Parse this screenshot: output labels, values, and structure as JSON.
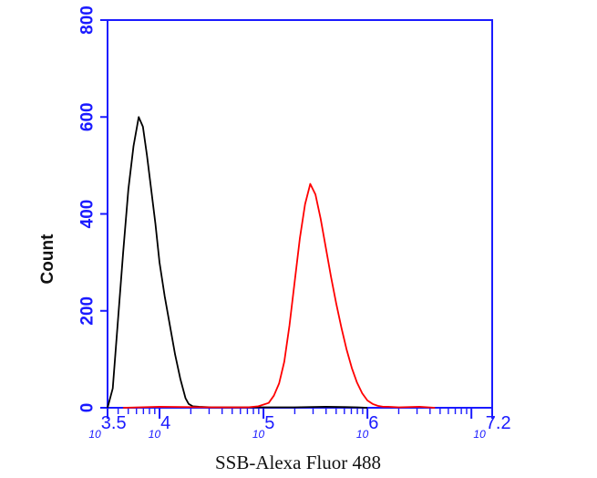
{
  "chart_data": {
    "type": "line",
    "xlabel": "SSB-Alexa Fluor 488",
    "ylabel": "Count",
    "x_scale": "log10",
    "xlim": [
      3.5,
      7.2
    ],
    "ylim": [
      0,
      800
    ],
    "yticks": [
      0,
      200,
      400,
      600,
      800
    ],
    "xticks": [
      {
        "base": "10",
        "exp": "3.5",
        "value": 3.5
      },
      {
        "base": "10",
        "exp": "4",
        "value": 4
      },
      {
        "base": "10",
        "exp": "5",
        "value": 5
      },
      {
        "base": "10",
        "exp": "6",
        "value": 6
      },
      {
        "base": "10",
        "exp": "7.2",
        "value": 7.2
      }
    ],
    "grid": false,
    "colors": {
      "axis": "#1a1aff",
      "control": "#000000",
      "sample": "#ff0000"
    },
    "series": [
      {
        "color": "#000000",
        "x": [
          3.5,
          3.55,
          3.6,
          3.65,
          3.7,
          3.75,
          3.8,
          3.84,
          3.88,
          3.92,
          3.96,
          4.0,
          4.05,
          4.1,
          4.15,
          4.2,
          4.25,
          4.28,
          4.32,
          4.38,
          4.5,
          4.7,
          5.0,
          5.3,
          5.6,
          5.9,
          6.0
        ],
        "y": [
          0,
          40,
          180,
          320,
          450,
          540,
          600,
          580,
          520,
          450,
          380,
          300,
          230,
          170,
          110,
          60,
          20,
          8,
          3,
          2,
          1,
          1,
          1,
          1,
          2,
          1,
          0
        ]
      },
      {
        "color": "#ff0000",
        "x": [
          3.65,
          4.0,
          4.5,
          4.85,
          4.95,
          5.05,
          5.1,
          5.15,
          5.2,
          5.25,
          5.3,
          5.35,
          5.4,
          5.45,
          5.5,
          5.55,
          5.6,
          5.65,
          5.7,
          5.75,
          5.8,
          5.85,
          5.9,
          5.95,
          6.0,
          6.05,
          6.1,
          6.15,
          6.2,
          6.3,
          6.5,
          6.65
        ],
        "y": [
          0,
          2,
          1,
          1,
          3,
          10,
          25,
          50,
          95,
          170,
          260,
          350,
          420,
          462,
          440,
          390,
          330,
          270,
          215,
          165,
          120,
          82,
          52,
          30,
          15,
          8,
          4,
          2,
          2,
          1,
          2,
          0
        ]
      }
    ]
  }
}
